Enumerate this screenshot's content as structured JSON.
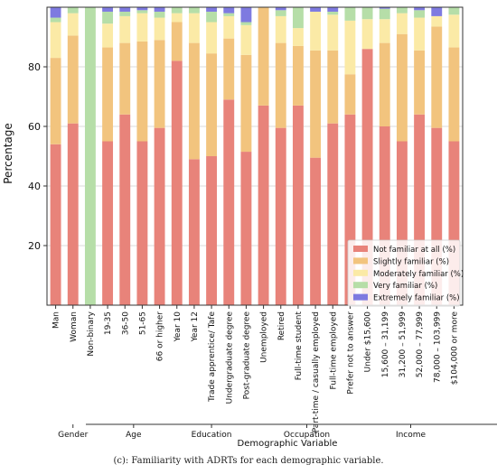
{
  "chart_data": {
    "type": "bar",
    "stacked": true,
    "ylabel": "Percentage",
    "xlabel": "Demographic Variable",
    "ylim": [
      0,
      100
    ],
    "yticks": [
      20,
      40,
      60,
      80
    ],
    "grid": true,
    "legend_position": "lower right",
    "categories": [
      "Man",
      "Woman",
      "Non-binary",
      "19-35",
      "36-50",
      "51-65",
      "66 or higher",
      "Year 10",
      "Year 12",
      "Trade apprentice/ Tafe",
      "Undergraduate degree",
      "Post-graduate degree",
      "Unemployed",
      "Retired",
      "Full-time student",
      "Part-time / casually employed",
      "Full-time employed",
      "Prefer not to answer",
      "Under $15,600",
      "15,600 – 31,199",
      "31,200 – 51,999",
      "52,000 – 77,999",
      "78,000 – 103,999",
      "$104,000 or more"
    ],
    "groups": [
      {
        "label": "Gender",
        "categories": [
          "Man",
          "Woman",
          "Non-binary"
        ]
      },
      {
        "label": "Age",
        "categories": [
          "19-35",
          "36-50",
          "51-65",
          "66 or higher"
        ]
      },
      {
        "label": "Education",
        "categories": [
          "Year 10",
          "Year 12",
          "Trade apprentice/ Tafe",
          "Undergraduate degree",
          "Post-graduate degree"
        ]
      },
      {
        "label": "Occupation",
        "categories": [
          "Unemployed",
          "Retired",
          "Full-time student",
          "Part-time / casually employed",
          "Full-time employed",
          "Prefer not to answer"
        ]
      },
      {
        "label": "Income",
        "categories": [
          "Under $15,600",
          "15,600 – 31,199",
          "31,200 – 51,999",
          "52,000 – 77,999",
          "78,000 – 103,999",
          "$104,000 or more"
        ]
      }
    ],
    "series": [
      {
        "name": "Not familiar at all (%)",
        "color": "#e8837a",
        "values": [
          54,
          61,
          0,
          55,
          64,
          55,
          59.5,
          82,
          49,
          50,
          69,
          51.5,
          67,
          59.5,
          67,
          49.5,
          61,
          64,
          86,
          60,
          55,
          64,
          59.5,
          55
        ]
      },
      {
        "name": "Slightly familiar (%)",
        "color": "#f2c47e",
        "values": [
          29,
          29.5,
          0,
          31.5,
          24,
          33.5,
          29.5,
          13,
          39,
          34.5,
          20.5,
          32.5,
          33,
          28.5,
          20,
          36,
          24.5,
          13.5,
          0,
          28,
          36,
          21.5,
          34,
          31.5
        ]
      },
      {
        "name": "Moderately familiar (%)",
        "color": "#fbeaa6",
        "values": [
          12,
          7.5,
          0,
          8,
          9,
          9.5,
          7.5,
          3,
          10,
          10.5,
          7.5,
          10,
          0,
          9,
          6,
          13,
          12,
          18,
          10,
          8,
          7,
          11,
          3.5,
          11
        ]
      },
      {
        "name": "Very familiar (%)",
        "color": "#b6dea8",
        "values": [
          1.5,
          2,
          100,
          4,
          1.5,
          1,
          2,
          2,
          2,
          3.5,
          1,
          1,
          0,
          2,
          7,
          0,
          1,
          4.5,
          4,
          3.5,
          2,
          2.5,
          0,
          2.5
        ]
      },
      {
        "name": "Extremely familiar (%)",
        "color": "#7e7ae0",
        "values": [
          3.5,
          0,
          0,
          1.5,
          1.5,
          1,
          1.5,
          0,
          0,
          1.5,
          2,
          5,
          0,
          1,
          0,
          1.5,
          1.5,
          0,
          0,
          0.5,
          0,
          1,
          3,
          0
        ]
      }
    ]
  },
  "caption": "(c): Familiarity with ADRTs for each demographic variable."
}
